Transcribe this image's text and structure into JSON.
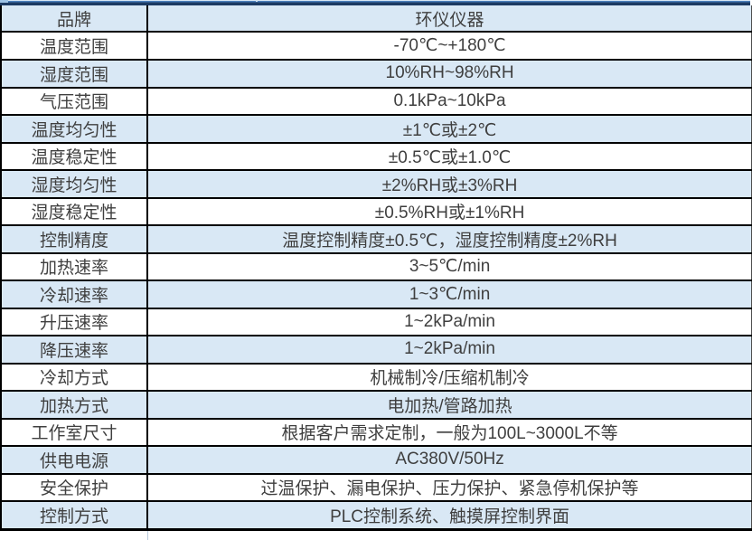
{
  "table": {
    "accent_row_color": "#d9e8f5",
    "border_color": "#000000",
    "text_color": "#3f3f3f",
    "rows": [
      {
        "label": "品牌",
        "value": "环仪仪器"
      },
      {
        "label": "温度范围",
        "value": "-70℃~+180℃"
      },
      {
        "label": "湿度范围",
        "value": "10%RH~98%RH"
      },
      {
        "label": "气压范围",
        "value": "0.1kPa~10kPa"
      },
      {
        "label": "温度均匀性",
        "value": "±1℃或±2℃"
      },
      {
        "label": "温度稳定性",
        "value": "±0.5℃或±1.0℃"
      },
      {
        "label": "湿度均匀性",
        "value": "±2%RH或±3%RH"
      },
      {
        "label": "湿度稳定性",
        "value": "±0.5%RH或±1%RH"
      },
      {
        "label": "控制精度",
        "value": "温度控制精度±0.5℃，湿度控制精度±2%RH"
      },
      {
        "label": "加热速率",
        "value": "3~5℃/min"
      },
      {
        "label": "冷却速率",
        "value": "1~3℃/min"
      },
      {
        "label": "升压速率",
        "value": "1~2kPa/min"
      },
      {
        "label": "降压速率",
        "value": "1~2kPa/min"
      },
      {
        "label": "冷却方式",
        "value": "机械制冷/压缩机制冷"
      },
      {
        "label": "加热方式",
        "value": "电加热/管路加热"
      },
      {
        "label": "工作室尺寸",
        "value": "根据客户需求定制，一般为100L~3000L不等"
      },
      {
        "label": "供电电源",
        "value": "AC380V/50Hz"
      },
      {
        "label": "安全保护",
        "value": "过温保护、漏电保护、压力保护、紧急停机保护等"
      },
      {
        "label": "控制方式",
        "value": "PLC控制系统、触摸屏控制界面"
      }
    ]
  }
}
